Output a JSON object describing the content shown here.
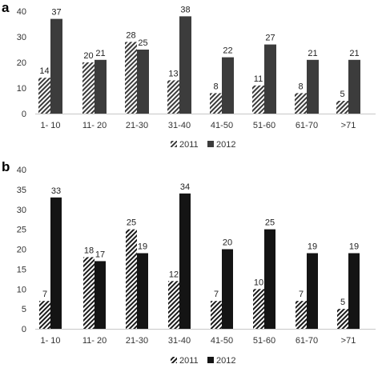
{
  "chart_data": [
    {
      "type": "bar",
      "panel_label": "a",
      "categories": [
        "1- 10",
        "11- 20",
        "21-30",
        "31-40",
        "41-50",
        "51-60",
        "61-70",
        ">71"
      ],
      "series": [
        {
          "name": "2011",
          "values": [
            14,
            20,
            28,
            13,
            8,
            11,
            8,
            5
          ],
          "pattern": "diagonal-hatch",
          "color": "#3a3a3a"
        },
        {
          "name": "2012",
          "values": [
            37,
            21,
            25,
            38,
            22,
            27,
            21,
            21
          ],
          "pattern": "solid",
          "color": "#3c3c3c"
        }
      ],
      "yticks": [
        0,
        10,
        20,
        30,
        40
      ],
      "ylim": [
        0,
        40
      ],
      "grid": false,
      "legend": "bottom-center"
    },
    {
      "type": "bar",
      "panel_label": "b",
      "categories": [
        "1- 10",
        "11- 20",
        "21-30",
        "31-40",
        "41-50",
        "51-60",
        "61-70",
        ">71"
      ],
      "series": [
        {
          "name": "2011",
          "values": [
            7,
            18,
            25,
            12,
            7,
            10,
            7,
            5
          ],
          "pattern": "diagonal-hatch",
          "color": "#1a1a1a"
        },
        {
          "name": "2012",
          "values": [
            33,
            17,
            19,
            34,
            20,
            25,
            19,
            19
          ],
          "pattern": "solid",
          "color": "#141414"
        }
      ],
      "yticks": [
        0,
        5,
        10,
        15,
        20,
        25,
        30,
        35,
        40
      ],
      "ylim": [
        0,
        40
      ],
      "grid": false,
      "legend": "bottom-center"
    }
  ]
}
